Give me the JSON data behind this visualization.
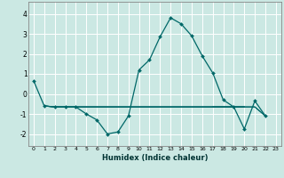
{
  "xlabel": "Humidex (Indice chaleur)",
  "bg_color": "#cbe8e3",
  "line_color": "#006868",
  "grid_color": "#ffffff",
  "xlim": [
    -0.5,
    23.5
  ],
  "ylim": [
    -2.6,
    4.6
  ],
  "xticks": [
    0,
    1,
    2,
    3,
    4,
    5,
    6,
    7,
    8,
    9,
    10,
    11,
    12,
    13,
    14,
    15,
    16,
    17,
    18,
    19,
    20,
    21,
    22,
    23
  ],
  "yticks": [
    -2,
    -1,
    0,
    1,
    2,
    3,
    4
  ],
  "series": [
    [
      0.65,
      -0.6,
      -0.65,
      -0.65,
      -0.65,
      -1.0,
      -1.3,
      -2.0,
      -1.9,
      -1.1,
      1.2,
      1.7,
      2.85,
      3.8,
      3.5,
      2.9,
      1.9,
      1.05,
      -0.3,
      -0.65,
      -1.75,
      -0.35,
      -1.1,
      null
    ],
    [
      null,
      -0.6,
      -0.65,
      -0.65,
      -0.65,
      -0.65,
      -0.65,
      -0.65,
      -0.65,
      -0.65,
      -0.65,
      -0.65,
      -0.65,
      -0.65,
      -0.65,
      -0.65,
      -0.65,
      -0.65,
      -0.65,
      -0.65,
      -0.65,
      null,
      null,
      null
    ],
    [
      null,
      null,
      null,
      null,
      null,
      null,
      null,
      null,
      null,
      null,
      null,
      null,
      null,
      null,
      null,
      null,
      null,
      -0.65,
      -0.65,
      -0.65,
      -0.65,
      -0.65,
      -1.1,
      null
    ],
    [
      null,
      -0.6,
      -0.65,
      -0.65,
      -0.65,
      -0.65,
      -0.65,
      -0.65,
      -0.65,
      -0.65,
      -0.65,
      -0.65,
      -0.65,
      -0.65,
      -0.65,
      -0.65,
      -0.65,
      -0.65,
      -0.65,
      -0.65,
      -0.65,
      -0.65,
      -1.1,
      null
    ],
    [
      null,
      -0.6,
      -0.65,
      -0.65,
      -0.65,
      -0.65,
      -0.65,
      -0.65,
      -0.65,
      -0.65,
      -0.65,
      -0.65,
      -0.65,
      -0.65,
      -0.65,
      -0.65,
      -0.65,
      -0.65,
      -0.65,
      -0.65,
      -0.65,
      null,
      null,
      null
    ]
  ]
}
